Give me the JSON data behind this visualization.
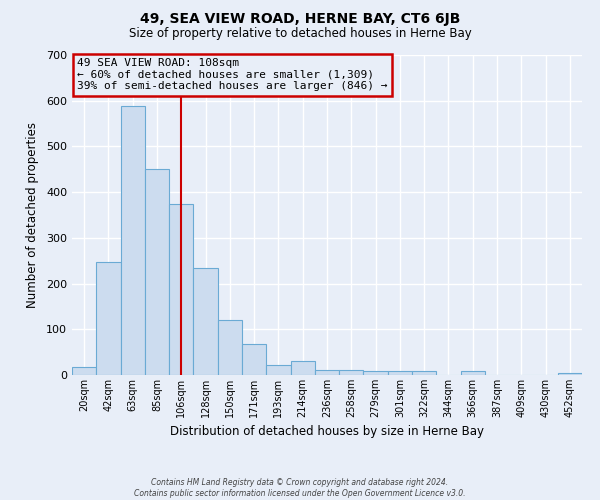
{
  "title": "49, SEA VIEW ROAD, HERNE BAY, CT6 6JB",
  "subtitle": "Size of property relative to detached houses in Herne Bay",
  "xlabel": "Distribution of detached houses by size in Herne Bay",
  "ylabel": "Number of detached properties",
  "bar_labels": [
    "20sqm",
    "42sqm",
    "63sqm",
    "85sqm",
    "106sqm",
    "128sqm",
    "150sqm",
    "171sqm",
    "193sqm",
    "214sqm",
    "236sqm",
    "258sqm",
    "279sqm",
    "301sqm",
    "322sqm",
    "344sqm",
    "366sqm",
    "387sqm",
    "409sqm",
    "430sqm",
    "452sqm"
  ],
  "bar_values": [
    18,
    248,
    588,
    450,
    375,
    235,
    120,
    68,
    22,
    30,
    10,
    10,
    8,
    8,
    8,
    0,
    8,
    0,
    0,
    0,
    5
  ],
  "bar_color": "#ccdcef",
  "bar_edge_color": "#6aaad4",
  "ylim": [
    0,
    700
  ],
  "yticks": [
    0,
    100,
    200,
    300,
    400,
    500,
    600,
    700
  ],
  "vline_x_index": 4,
  "vline_color": "#cc0000",
  "annotation_title": "49 SEA VIEW ROAD: 108sqm",
  "annotation_line1": "← 60% of detached houses are smaller (1,309)",
  "annotation_line2": "39% of semi-detached houses are larger (846) →",
  "annotation_box_color": "#cc0000",
  "footnote1": "Contains HM Land Registry data © Crown copyright and database right 2024.",
  "footnote2": "Contains public sector information licensed under the Open Government Licence v3.0.",
  "bg_color": "#e8eef8",
  "grid_color": "#ffffff",
  "plot_bg_color": "#e8eef8"
}
